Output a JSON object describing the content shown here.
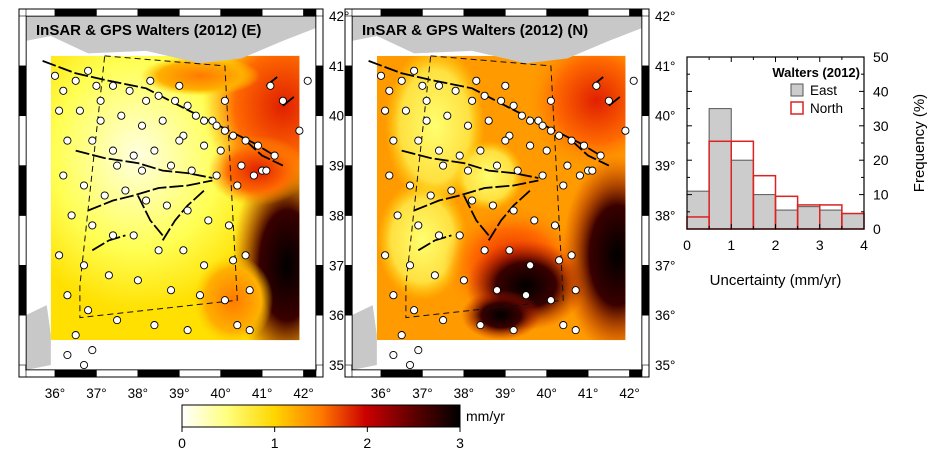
{
  "maps": [
    {
      "title": "InSAR & GPS Walters (2012) (E)",
      "lon_ticks": [
        "36°",
        "37°",
        "38°",
        "39°",
        "40°",
        "41°",
        "42°"
      ],
      "lat_ticks": [
        "35°",
        "36°",
        "37°",
        "38°",
        "39°",
        "40°",
        "41°",
        "42°"
      ]
    },
    {
      "title": "InSAR & GPS Walters (2012) (N)",
      "lon_ticks": [
        "36°",
        "37°",
        "38°",
        "39°",
        "40°",
        "41°",
        "42°"
      ],
      "lat_ticks": [
        "35°",
        "36°",
        "37°",
        "38°",
        "39°",
        "40°",
        "41°",
        "42°"
      ]
    }
  ],
  "colorbar": {
    "unit": "mm/yr",
    "ticks": [
      "0",
      "1",
      "2",
      "3"
    ],
    "colors": [
      "#ffffff",
      "#ffff66",
      "#ffcc00",
      "#ff6600",
      "#cc0000",
      "#660000",
      "#000000"
    ]
  },
  "chart_data": {
    "type": "bar",
    "title": "",
    "legend_title": "Walters (2012)",
    "legend_placement": "top-right",
    "xlabel": "Uncertainty (mm/yr)",
    "ylabel": "Frequency (%)",
    "xlim": [
      0,
      4
    ],
    "ylim": [
      0,
      50
    ],
    "xticks": [
      "0",
      "1",
      "2",
      "3",
      "4"
    ],
    "yticks": [
      "0",
      "10",
      "20",
      "30",
      "40",
      "50"
    ],
    "bin_edges": [
      0,
      0.5,
      1,
      1.5,
      2,
      2.5,
      3,
      3.5,
      4
    ],
    "series": [
      {
        "name": "East",
        "color": "#cccccc",
        "values": [
          11,
          35,
          20,
          10,
          5.5,
          6.5,
          5.5,
          4.5
        ]
      },
      {
        "name": "North",
        "color": "#dd2222",
        "values": [
          3.5,
          25.5,
          25.5,
          15.5,
          9.5,
          7,
          7,
          4.5
        ]
      }
    ]
  }
}
